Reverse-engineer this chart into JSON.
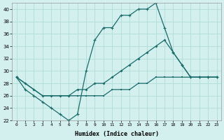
{
  "xlabel": "Humidex (Indice chaleur)",
  "bg_color": "#d4f0ee",
  "grid_color": "#b0dcd8",
  "line_color": "#1a6b6b",
  "xlim": [
    -0.5,
    23.5
  ],
  "ylim": [
    22,
    41
  ],
  "xticks": [
    0,
    1,
    2,
    3,
    4,
    5,
    6,
    7,
    8,
    9,
    10,
    11,
    12,
    13,
    14,
    15,
    16,
    17,
    18,
    19,
    20,
    21,
    22,
    23
  ],
  "yticks": [
    22,
    24,
    26,
    28,
    30,
    32,
    34,
    36,
    38,
    40
  ],
  "line1_x": [
    0,
    1,
    2,
    3,
    4,
    5,
    6,
    7,
    8,
    9,
    10,
    11,
    12,
    13,
    14,
    15,
    16,
    17,
    18,
    19,
    20,
    21,
    22,
    23
  ],
  "line1_y": [
    29,
    27,
    26,
    25,
    24,
    23,
    22,
    23,
    30,
    35,
    37,
    37,
    39,
    39,
    40,
    40,
    41,
    37,
    33,
    31,
    29,
    29,
    29,
    29
  ],
  "line2_x": [
    0,
    1,
    2,
    3,
    4,
    5,
    6,
    7,
    8,
    9,
    10,
    11,
    12,
    13,
    14,
    15,
    16,
    17,
    18,
    19,
    20,
    21,
    22,
    23
  ],
  "line2_y": [
    29,
    28,
    27,
    26,
    26,
    26,
    26,
    27,
    27,
    28,
    28,
    29,
    30,
    31,
    32,
    33,
    34,
    35,
    33,
    31,
    29,
    29,
    29,
    29
  ],
  "line3_x": [
    0,
    1,
    2,
    3,
    4,
    5,
    6,
    7,
    8,
    9,
    10,
    11,
    12,
    13,
    14,
    15,
    16,
    17,
    18,
    19,
    20,
    21,
    22,
    23
  ],
  "line3_y": [
    29,
    28,
    27,
    26,
    26,
    26,
    26,
    26,
    26,
    26,
    26,
    27,
    27,
    27,
    28,
    28,
    29,
    29,
    29,
    29,
    29,
    29,
    29,
    29
  ]
}
